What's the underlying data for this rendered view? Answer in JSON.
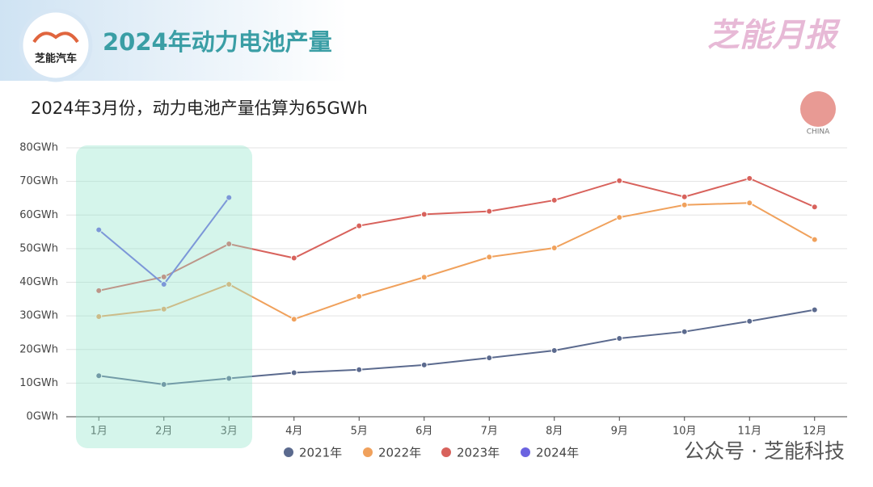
{
  "header": {
    "logo_text": "芝能汽车",
    "brand": "芝能月报"
  },
  "flag_label": "CHINA",
  "watermark": "公众号 · 芝能科技",
  "chart_data": {
    "type": "line",
    "title": "2024年动力电池产量",
    "subtitle": "2024年3月份，动力电池产量估算为65GWh",
    "categories": [
      "1月",
      "2月",
      "3月",
      "4月",
      "5月",
      "6月",
      "7月",
      "8月",
      "9月",
      "10月",
      "11月",
      "12月"
    ],
    "series": [
      {
        "name": "2021年",
        "color": "#5b6a8e",
        "values": [
          12.2,
          9.6,
          11.4,
          13.1,
          14.0,
          15.4,
          17.5,
          19.7,
          23.3,
          25.3,
          28.4,
          31.8
        ]
      },
      {
        "name": "2022年",
        "color": "#f0a15c",
        "values": [
          29.8,
          32.0,
          39.4,
          29.0,
          35.8,
          41.5,
          47.5,
          50.2,
          59.3,
          63.0,
          63.6,
          52.7
        ]
      },
      {
        "name": "2023年",
        "color": "#d8625c",
        "values": [
          37.5,
          41.6,
          51.4,
          47.2,
          56.8,
          60.2,
          61.1,
          64.4,
          70.2,
          65.4,
          70.9,
          62.4
        ]
      },
      {
        "name": "2024年",
        "color": "#6b63e0",
        "values": [
          55.6,
          39.4,
          65.2,
          null,
          null,
          null,
          null,
          null,
          null,
          null,
          null,
          null
        ]
      }
    ],
    "ylim": [
      0,
      80
    ],
    "yticks": [
      {
        "value": 0,
        "label": "0GWh"
      },
      {
        "value": 10,
        "label": "10GWh"
      },
      {
        "value": 20,
        "label": "20GWh"
      },
      {
        "value": 30,
        "label": "30GWh"
      },
      {
        "value": 40,
        "label": "40GWh"
      },
      {
        "value": 50,
        "label": "50GWh"
      },
      {
        "value": 60,
        "label": "60GWh"
      },
      {
        "value": 70,
        "label": "70GWh"
      },
      {
        "value": 80,
        "label": "80GWh"
      }
    ],
    "grid": true
  }
}
